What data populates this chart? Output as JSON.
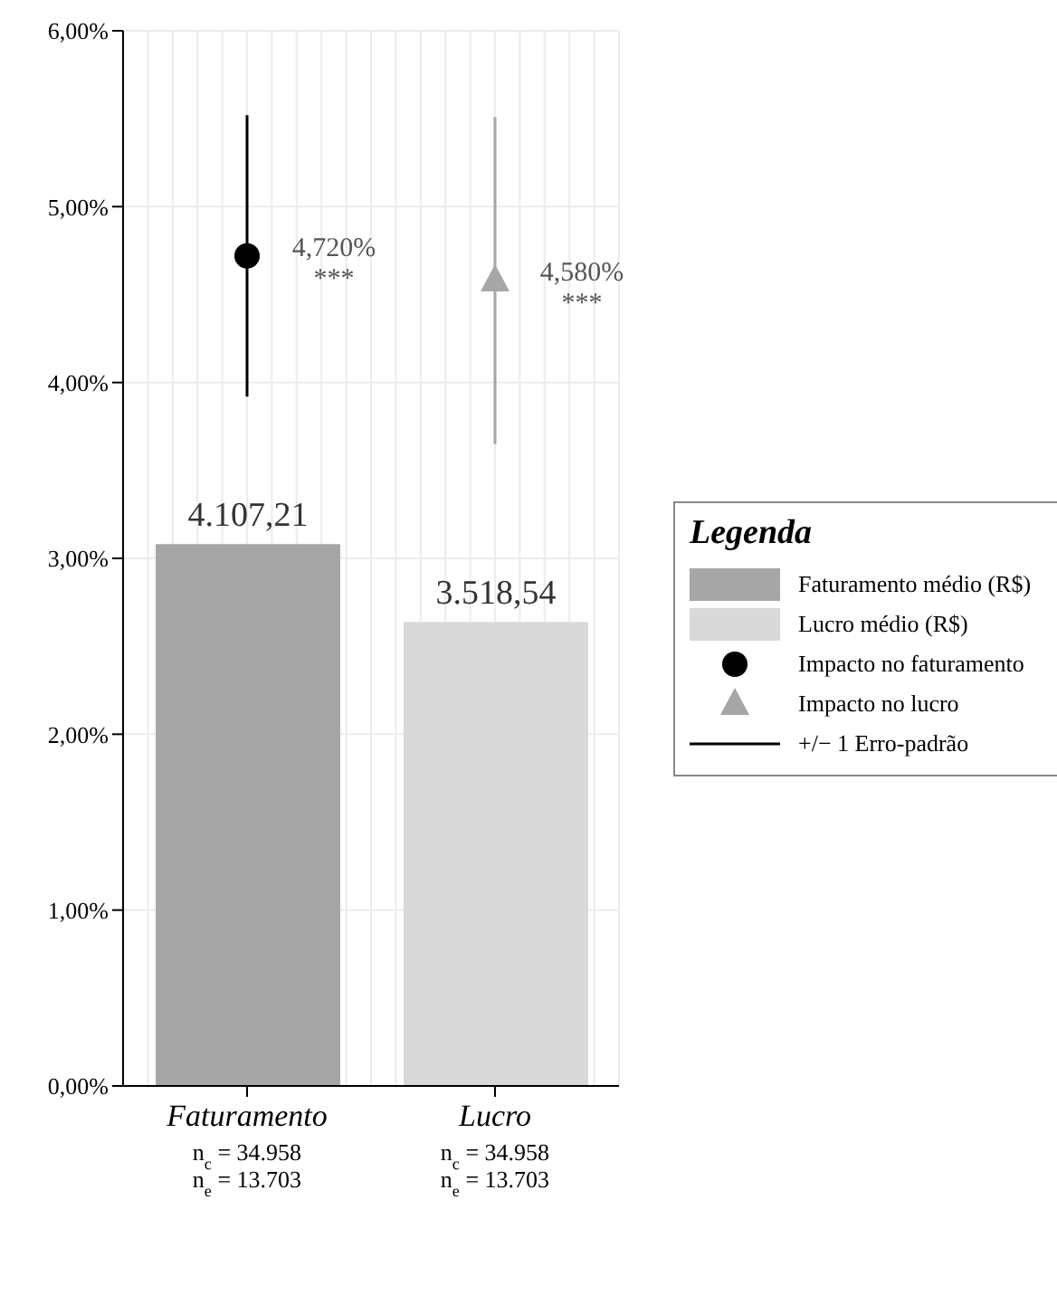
{
  "chart_data": {
    "type": "bar",
    "categories": [
      "Faturamento\nn$_{c}$ = 34.958\nn$_{e}$ = 13.703",
      "Lucro\nn$_{c}$ = 34.958\nn$_{e}$ = 13.703"
    ],
    "ylim": [
      0,
      6
    ],
    "yticks": [
      {
        "value": 0,
        "label": "0,00%"
      },
      {
        "value": 1,
        "label": "1,00%"
      },
      {
        "value": 2,
        "label": "2,00%"
      },
      {
        "value": 3,
        "label": "3,00%"
      },
      {
        "value": 4,
        "label": "4,00%"
      },
      {
        "value": 5,
        "label": "5,00%"
      },
      {
        "value": 6,
        "label": "6,00%"
      }
    ],
    "y2lim": [
      0,
      8000
    ],
    "grid": true,
    "legend": "right",
    "legend_title": "Legenda",
    "series": [
      {
        "name": "Faturamento médio (R$)",
        "axis": "y2",
        "color": "#a6a6a6",
        "values": [
          4107.21,
          null
        ],
        "value_labels": [
          "4.107,21",
          null
        ]
      },
      {
        "name": "Lucro médio (R$)",
        "axis": "y2",
        "color": "#d9d9d9",
        "values": [
          null,
          3518.54
        ],
        "value_labels": [
          null,
          "3.518,54"
        ]
      },
      {
        "name": "Impacto no faturamento",
        "type": "scatter",
        "marker": "circle",
        "color": "#000000",
        "values": [
          4.72,
          null
        ],
        "errors": [
          0.8,
          null
        ]
      },
      {
        "name": "Impacto no lucro",
        "type": "scatter",
        "marker": "triangle",
        "color": "#a6a6a6",
        "values": [
          null,
          4.58
        ],
        "errors": [
          null,
          0.93
        ]
      }
    ],
    "annotations": [
      {
        "text": "4,720%\n***",
        "x": "Faturamento\nn$_{c}$ = 34.958\nn$_{e}$ = 13.703",
        "y": 4.72
      },
      {
        "text": "4,580%\n***",
        "x": "Lucro\nn$_{c}$ = 34.958\nn$_{e}$ = 13.703",
        "y": 4.58
      },
      "+/− 1 Erro-padrão"
    ]
  }
}
